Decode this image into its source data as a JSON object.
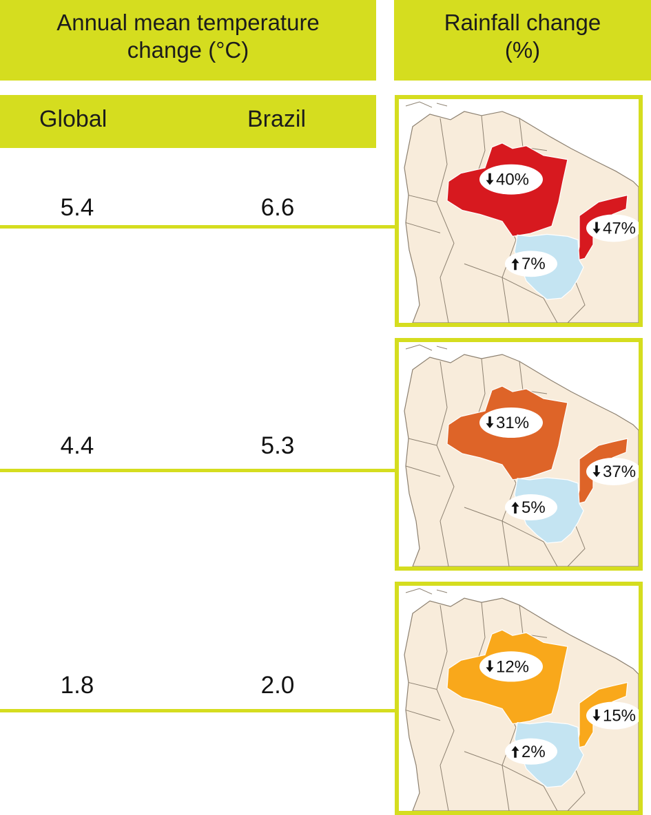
{
  "header": {
    "temperature_title_line1": "Annual mean temperature",
    "temperature_title_line2": "change (°C)",
    "rainfall_title_line1": "Rainfall change",
    "rainfall_title_line2": "(%)",
    "global_label": "Global",
    "brazil_label": "Brazil"
  },
  "rows": [
    {
      "global": "5.4",
      "brazil": "6.6",
      "amazon": "40%",
      "northeast": "47%",
      "southeast": "7%",
      "amazon_trend": "down",
      "northeast_trend": "down",
      "southeast_trend": "up",
      "region_color": "#d7191f"
    },
    {
      "global": "4.4",
      "brazil": "5.3",
      "amazon": "31%",
      "northeast": "37%",
      "southeast": "5%",
      "amazon_trend": "down",
      "northeast_trend": "down",
      "southeast_trend": "up",
      "region_color": "#de6428"
    },
    {
      "global": "1.8",
      "brazil": "2.0",
      "amazon": "12%",
      "northeast": "15%",
      "southeast": "2%",
      "amazon_trend": "down",
      "northeast_trend": "down",
      "southeast_trend": "up",
      "region_color": "#f9a81b"
    }
  ],
  "colors": {
    "accent": "#d5dd1f",
    "land": "#f8ecdb",
    "border_lines": "#8c8070",
    "southeast_region": "#c4e4f2"
  }
}
